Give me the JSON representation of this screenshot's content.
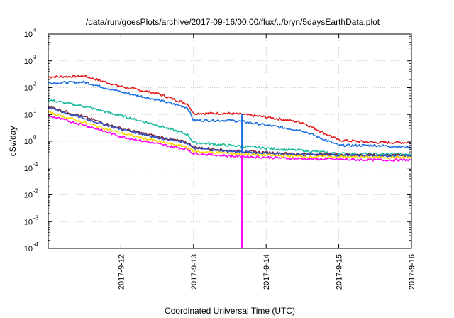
{
  "chart_data": {
    "type": "line",
    "title": "/data/run/goesPlots/archive/2017-09-16/00:00/flux/../bryn/5daysEarthData.plot",
    "xlabel": "Coordinated Universal Time (UTC)",
    "ylabel": "cSv/day",
    "yscale": "log",
    "ylim": [
      0.0001,
      10000
    ],
    "xlim": [
      "2017-09-11T00:00",
      "2017-09-16T00:00"
    ],
    "y_ticks": [
      {
        "base": "10",
        "exp": "-4",
        "value": 0.0001
      },
      {
        "base": "10",
        "exp": "-3",
        "value": 0.001
      },
      {
        "base": "10",
        "exp": "-2",
        "value": 0.01
      },
      {
        "base": "10",
        "exp": "-1",
        "value": 0.1
      },
      {
        "base": "10",
        "exp": "0",
        "value": 1
      },
      {
        "base": "10",
        "exp": "1",
        "value": 10
      },
      {
        "base": "10",
        "exp": "2",
        "value": 100
      },
      {
        "base": "10",
        "exp": "3",
        "value": 1000
      },
      {
        "base": "10",
        "exp": "4",
        "value": 10000
      }
    ],
    "x_ticks": [
      {
        "label": "2017-9-12",
        "value": "2017-09-12T00:00"
      },
      {
        "label": "2017-9-13",
        "value": "2017-09-13T00:00"
      },
      {
        "label": "2017-9-14",
        "value": "2017-09-14T00:00"
      },
      {
        "label": "2017-9-15",
        "value": "2017-09-15T00:00"
      },
      {
        "label": "2017-9-16",
        "value": "2017-09-16T00:00"
      }
    ],
    "grid": true,
    "legend": "none",
    "x": [
      "2017-09-11T00:00",
      "2017-09-11T12:00",
      "2017-09-12T00:00",
      "2017-09-12T12:00",
      "2017-09-12T22:00",
      "2017-09-13T00:00",
      "2017-09-13T12:00",
      "2017-09-13T16:00",
      "2017-09-14T00:00",
      "2017-09-14T12:00",
      "2017-09-15T00:00",
      "2017-09-15T12:00",
      "2017-09-16T00:00"
    ],
    "series": [
      {
        "color": "#e41a1c",
        "values": [
          250,
          270,
          110,
          60,
          25,
          11,
          11,
          10,
          8,
          5,
          1.1,
          0.9,
          0.9
        ]
      },
      {
        "color": "#1a6fe0",
        "values": [
          150,
          160,
          70,
          35,
          18,
          6,
          6,
          5.5,
          4,
          2.5,
          0.7,
          0.7,
          0.6
        ]
      },
      {
        "color": "#1abc9c",
        "values": [
          35,
          20,
          9,
          4,
          1.8,
          0.9,
          0.7,
          0.65,
          0.55,
          0.45,
          0.35,
          0.33,
          0.32
        ]
      },
      {
        "color": "#7b1f3a",
        "values": [
          20,
          8,
          3,
          1.5,
          0.9,
          0.6,
          0.45,
          0.42,
          0.38,
          0.33,
          0.32,
          0.3,
          0.3
        ]
      },
      {
        "color": "#3050c0",
        "values": [
          18,
          7,
          2.8,
          1.4,
          0.85,
          0.55,
          0.42,
          0.4,
          0.36,
          0.31,
          0.3,
          0.29,
          0.29
        ]
      },
      {
        "color": "#ff00ff",
        "values": [
          9,
          4,
          1.5,
          0.8,
          0.5,
          0.35,
          0.28,
          0.27,
          0.25,
          0.22,
          0.21,
          0.2,
          0.2
        ]
      },
      {
        "color": "#ffd700",
        "values": [
          12,
          5,
          2,
          1,
          0.6,
          0.42,
          0.35,
          0.33,
          0.3,
          0.27,
          0.26,
          0.25,
          0.25
        ]
      }
    ],
    "annotations": [
      {
        "x": "2017-09-13T16:00",
        "y_from": 10,
        "y_to": 0.35,
        "color": "#1a6fe0"
      },
      {
        "x": "2017-09-13T16:00",
        "y_from": 0.0001,
        "y_to": 0.3,
        "color": "#ff00ff"
      }
    ]
  }
}
